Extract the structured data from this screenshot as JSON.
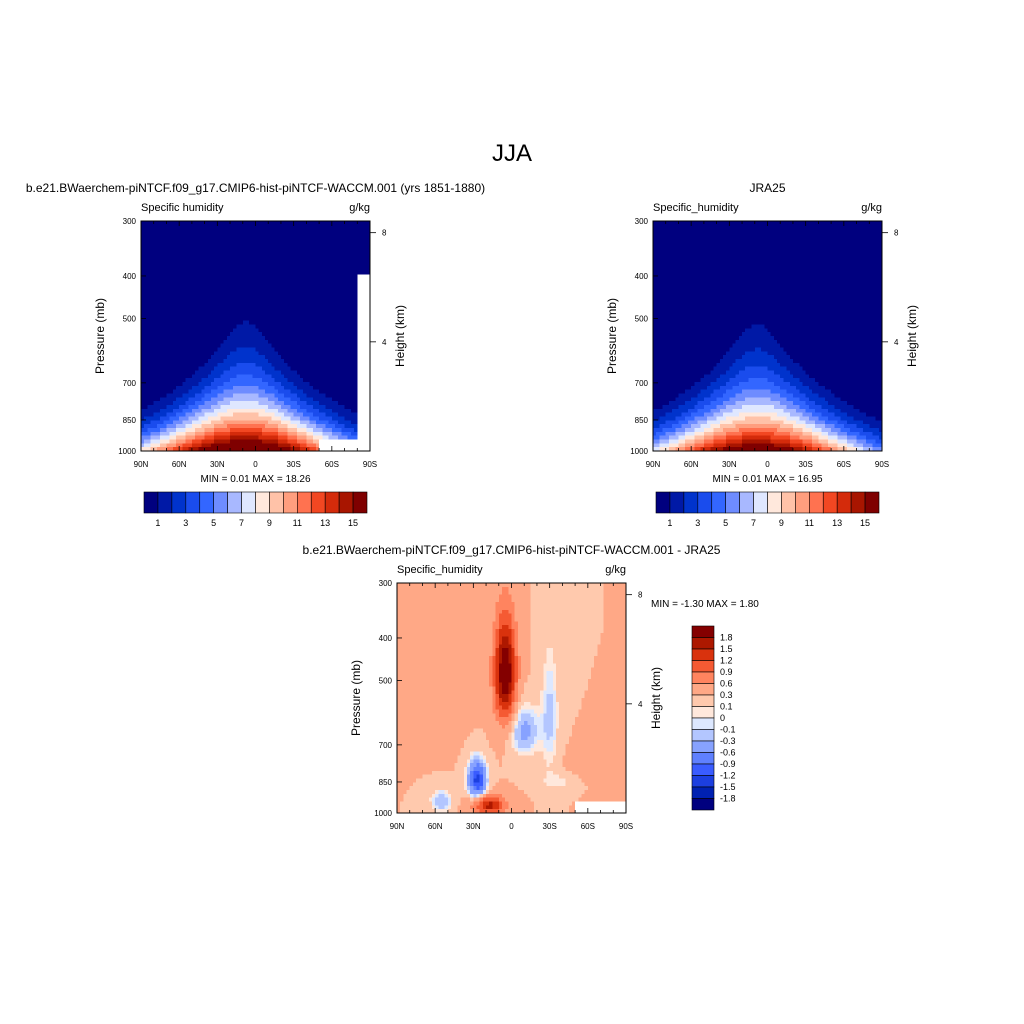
{
  "figure": {
    "title": "JJA"
  },
  "colors": {
    "abs_levels": [
      "#00007f",
      "#0019a6",
      "#0033cc",
      "#1a4ced",
      "#3366ff",
      "#6e8cff",
      "#a8b8ff",
      "#dfe7ff",
      "#ffe8dc",
      "#ffc2a8",
      "#ff9e7e",
      "#ff7250",
      "#f24722",
      "#d42b0b",
      "#a81500",
      "#7f0000"
    ],
    "diff_levels": [
      "#00007f",
      "#0021b2",
      "#1c3fe0",
      "#3a5cff",
      "#5f80ff",
      "#87a2ff",
      "#b3c6ff",
      "#dde8ff",
      "#ffe8dc",
      "#ffc9ad",
      "#ffa886",
      "#ff845f",
      "#f55a33",
      "#d9320d",
      "#ad1800",
      "#840000"
    ]
  },
  "chart_data": [
    {
      "type": "heatmap",
      "id": "model",
      "title": "b.e21.BWaerchem-piNTCF.f09_g17.CMIP6-hist-piNTCF-WACCM.001 (yrs 1851-1880)",
      "left_string": "Specific humidity",
      "right_string": "g/kg",
      "ylabel": "Pressure (mb)",
      "y2label": "Height (km)",
      "xticks": [
        "90N",
        "60N",
        "30N",
        "0",
        "30S",
        "60S",
        "90S"
      ],
      "yticks": [
        "300",
        "400",
        "500",
        "700",
        "850",
        "1000"
      ],
      "ytick_values": [
        300,
        400,
        500,
        700,
        850,
        1000
      ],
      "y2ticks": [
        "8",
        "4"
      ],
      "y2tick_values": [
        8,
        4
      ],
      "xlim": [
        90,
        -90
      ],
      "ylim": [
        1000,
        300
      ],
      "yscale": "log",
      "stats": "MIN =   0.01  MAX =  18.26",
      "levels": [
        1,
        2,
        3,
        4,
        5,
        6,
        7,
        8,
        9,
        10,
        11,
        12,
        13,
        14,
        15
      ],
      "colorbar_labels": [
        "1",
        "3",
        "5",
        "7",
        "9",
        "11",
        "13",
        "15"
      ],
      "colorbar_label_values": [
        1,
        3,
        5,
        7,
        9,
        11,
        13,
        15
      ],
      "colorbar_orientation": "horizontal",
      "peak_lat": 8,
      "peak_value": 18.26,
      "min_value": 0.01,
      "missing_region": {
        "lat_min": -90,
        "lat_max": -50,
        "p_min": 950
      },
      "missing_lat_south_of": -80
    },
    {
      "type": "heatmap",
      "id": "obs",
      "title": "JRA25",
      "left_string": "Specific_humidity",
      "right_string": "g/kg",
      "ylabel": "Pressure (mb)",
      "y2label": "Height (km)",
      "xticks": [
        "90N",
        "60N",
        "30N",
        "0",
        "30S",
        "60S",
        "90S"
      ],
      "yticks": [
        "300",
        "400",
        "500",
        "700",
        "850",
        "1000"
      ],
      "ytick_values": [
        300,
        400,
        500,
        700,
        850,
        1000
      ],
      "y2ticks": [
        "8",
        "4"
      ],
      "y2tick_values": [
        8,
        4
      ],
      "xlim": [
        90,
        -90
      ],
      "ylim": [
        1000,
        300
      ],
      "yscale": "log",
      "stats": "MIN =   0.01  MAX =  16.95",
      "levels": [
        1,
        2,
        3,
        4,
        5,
        6,
        7,
        8,
        9,
        10,
        11,
        12,
        13,
        14,
        15
      ],
      "colorbar_labels": [
        "1",
        "3",
        "5",
        "7",
        "9",
        "11",
        "13",
        "15"
      ],
      "colorbar_label_values": [
        1,
        3,
        5,
        7,
        9,
        11,
        13,
        15
      ],
      "colorbar_orientation": "horizontal",
      "peak_lat": 8,
      "peak_value": 16.95,
      "min_value": 0.01
    },
    {
      "type": "heatmap",
      "id": "diff",
      "title": "b.e21.BWaerchem-piNTCF.f09_g17.CMIP6-hist-piNTCF-WACCM.001 - JRA25",
      "left_string": "Specific_humidity",
      "right_string": "g/kg",
      "ylabel": "Pressure (mb)",
      "y2label": "Height (km)",
      "xticks": [
        "90N",
        "60N",
        "30N",
        "0",
        "30S",
        "60S",
        "90S"
      ],
      "yticks": [
        "300",
        "400",
        "500",
        "700",
        "850",
        "1000"
      ],
      "ytick_values": [
        300,
        400,
        500,
        700,
        850,
        1000
      ],
      "y2ticks": [
        "8",
        "4"
      ],
      "y2tick_values": [
        8,
        4
      ],
      "xlim": [
        90,
        -90
      ],
      "ylim": [
        1000,
        300
      ],
      "yscale": "log",
      "stats": "MIN =  -1.30  MAX =   1.80",
      "levels": [
        -1.8,
        -1.5,
        -1.2,
        -0.9,
        -0.6,
        -0.3,
        -0.1,
        0,
        0.1,
        0.3,
        0.6,
        0.9,
        1.2,
        1.5,
        1.8
      ],
      "colorbar_labels": [
        "1.8",
        "1.5",
        "1.2",
        "0.9",
        "0.6",
        "0.3",
        "0.1",
        "0",
        "-0.1",
        "-0.3",
        "-0.6",
        "-0.9",
        "-1.2",
        "-1.5",
        "-1.8"
      ],
      "colorbar_label_values": [
        1.8,
        1.5,
        1.2,
        0.9,
        0.6,
        0.3,
        0.1,
        0,
        -0.1,
        -0.3,
        -0.6,
        -0.9,
        -1.2,
        -1.5,
        -1.8
      ],
      "colorbar_orientation": "vertical",
      "min_value": -1.3,
      "max_value": 1.8,
      "missing_region": {
        "lat_min": -90,
        "lat_max": -50,
        "p_min": 950
      }
    }
  ]
}
